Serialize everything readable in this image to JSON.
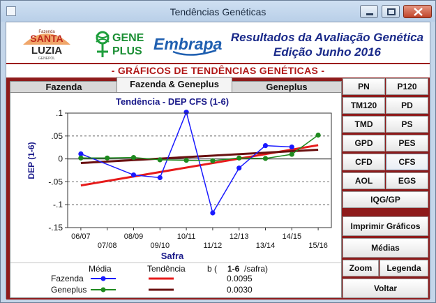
{
  "window": {
    "title": "Tendências Genéticas"
  },
  "header": {
    "santa_logo": {
      "line1": "Fazenda",
      "line2": "SANTA",
      "line3": "LUZIA",
      "line4": "GENEPOL"
    },
    "geneplus_logo": {
      "word1": "GENE",
      "word2": "PLUS"
    },
    "embrapa_logo": "Embrapa",
    "title_line1": "Resultados da Avaliação Genética",
    "title_line2": "Edição Junho 2016"
  },
  "section_title": "- GRÁFICOS DE TENDÊNCIAS GENÉTICAS -",
  "tabs": [
    {
      "label": "Fazenda",
      "active": false
    },
    {
      "label": "Fazenda & Geneplus",
      "active": true
    },
    {
      "label": "Geneplus",
      "active": false
    }
  ],
  "buttons": {
    "traits": [
      [
        "PN",
        "P120"
      ],
      [
        "TM120",
        "PD"
      ],
      [
        "TMD",
        "PS"
      ],
      [
        "GPD",
        "PES"
      ],
      [
        "CFD",
        "CFS"
      ],
      [
        "AOL",
        "EGS"
      ]
    ],
    "selected_trait": "CFS",
    "iqg": "IQG/GP",
    "print": "Imprimir Gráficos",
    "means": "Médias",
    "zoom": "Zoom",
    "legend": "Legenda",
    "back": "Voltar"
  },
  "chart_data": {
    "type": "line",
    "title": "Tendência - DEP CFS (1-6)",
    "xlabel": "Safra",
    "ylabel": "DEP (1-6)",
    "ylim": [
      -0.15,
      0.1
    ],
    "y_ticks": [
      0.1,
      0.05,
      0,
      -0.05,
      -0.1,
      -0.15
    ],
    "y_tick_labels": [
      ".1",
      ".05",
      "0",
      "-.05",
      "-.1",
      "-.15"
    ],
    "categories": [
      "06/07",
      "07/08",
      "08/09",
      "09/10",
      "10/11",
      "11/12",
      "12/13",
      "13/14",
      "14/15",
      "15/16"
    ],
    "grid": "horizontal-dashed",
    "series": [
      {
        "name": "Fazenda",
        "color": "#1a1aff",
        "values": [
          0.011,
          null,
          -0.035,
          -0.041,
          0.102,
          -0.118,
          -0.02,
          0.029,
          0.026,
          null
        ]
      },
      {
        "name": "Geneplus",
        "color": "#1e8a1e",
        "values": [
          0.002,
          0.002,
          0.003,
          -0.002,
          -0.003,
          -0.004,
          0.002,
          0.001,
          0.01,
          0.052
        ]
      }
    ],
    "trend_lines": [
      {
        "name": "Fazenda",
        "color": "#e61b1b",
        "start": -0.058,
        "end": 0.03
      },
      {
        "name": "Geneplus",
        "color": "#6a1010",
        "start": -0.009,
        "end": 0.02
      }
    ]
  },
  "legend": {
    "col_media": "Média",
    "col_tendencia": "Tendência",
    "col_b": "b (",
    "col_b_unit": "1-6",
    "col_b_suffix": "/safra)",
    "rows": [
      {
        "label": "Fazenda",
        "b": "0.0095"
      },
      {
        "label": "Geneplus",
        "b": "0.0030"
      }
    ]
  }
}
